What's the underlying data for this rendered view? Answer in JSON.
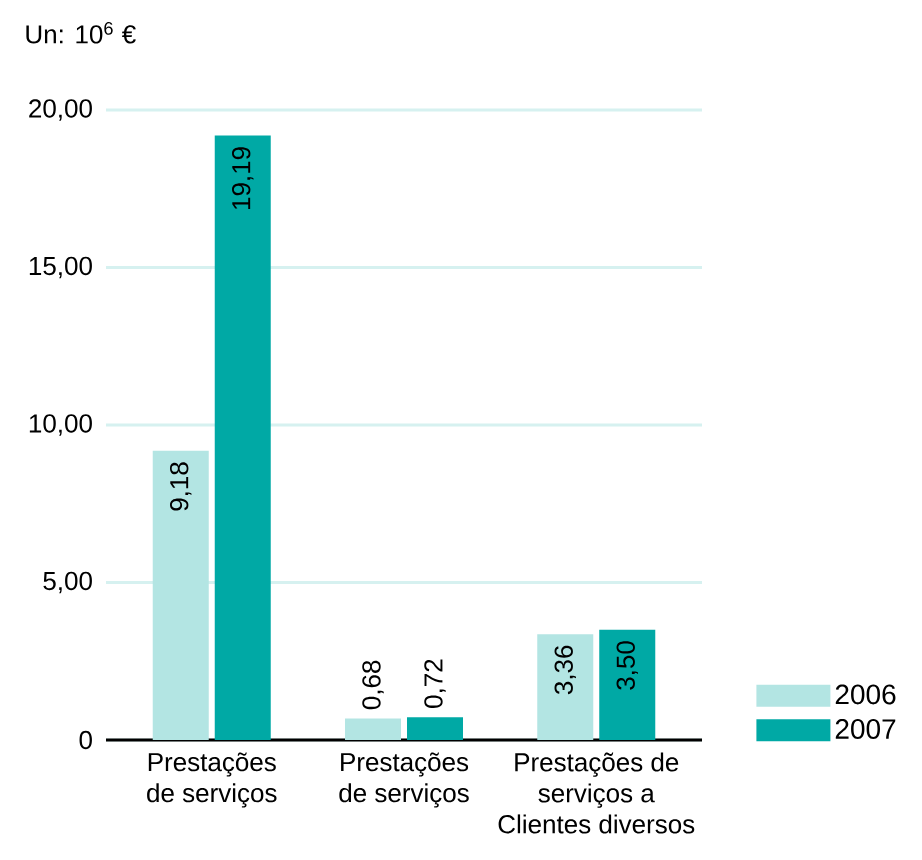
{
  "chart_data": {
    "type": "bar",
    "ylabel": "Un: 10$^{6}$ €",
    "categories": [
      "Prestações de serviços",
      "Prestações de serviços",
      "Prestações de serviços a Clientes diversos"
    ],
    "series": [
      {
        "name": "2006",
        "color": "#b3e5e3",
        "values": [
          9.18,
          0.68,
          3.36
        ],
        "value_labels": [
          "9,18",
          "0,68",
          "3,36"
        ]
      },
      {
        "name": "2007",
        "color": "#00a9a5",
        "values": [
          19.19,
          0.72,
          3.5
        ],
        "value_labels": [
          "19,19",
          "0,72",
          "3,50"
        ]
      }
    ],
    "ylim": [
      0,
      20
    ],
    "yticks": [
      0,
      {
        "value": 5,
        "label": "5,00"
      },
      {
        "value": 10,
        "label": "10,00"
      },
      {
        "value": 15,
        "label": "15,00"
      },
      {
        "value": 20,
        "label": "20,00"
      }
    ],
    "grid": "y",
    "legend": "bottom right"
  }
}
